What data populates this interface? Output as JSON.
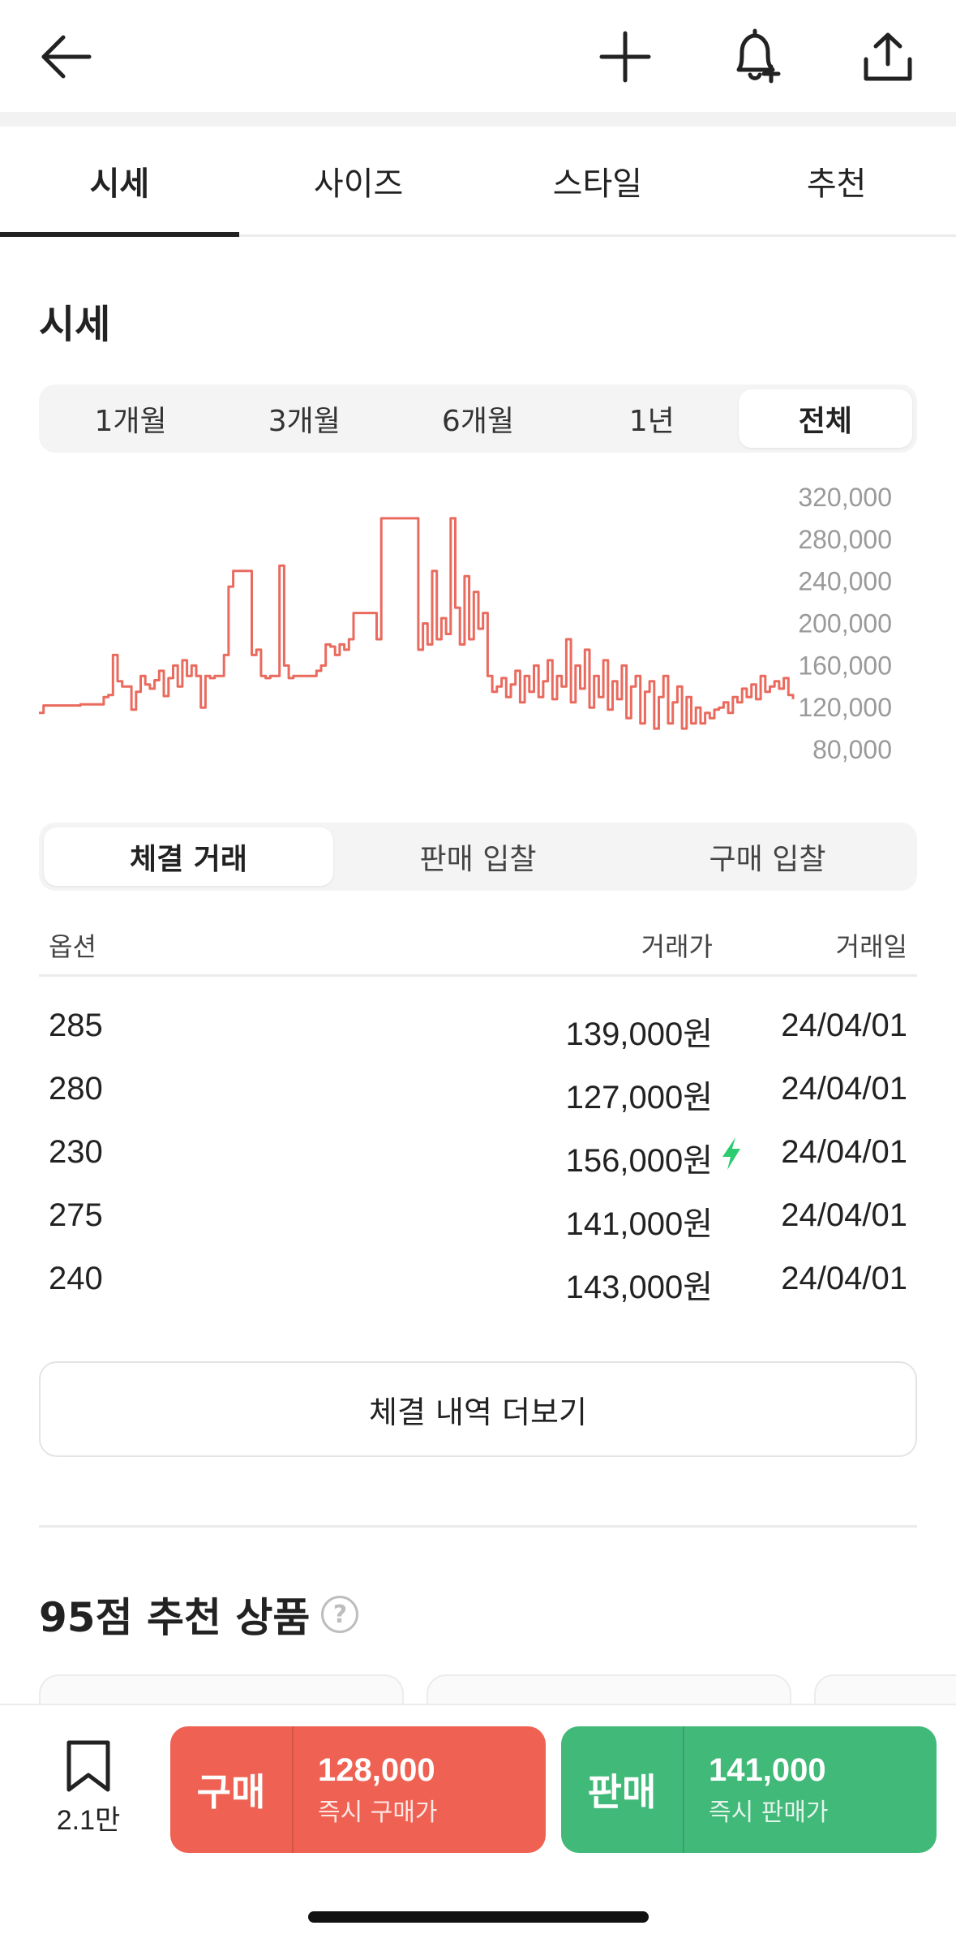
{
  "tabs": [
    {
      "label": "시세",
      "active": true
    },
    {
      "label": "사이즈",
      "active": false
    },
    {
      "label": "스타일",
      "active": false
    },
    {
      "label": "추천",
      "active": false
    }
  ],
  "section_title": "시세",
  "periods": [
    {
      "label": "1개월",
      "active": false
    },
    {
      "label": "3개월",
      "active": false
    },
    {
      "label": "6개월",
      "active": false
    },
    {
      "label": "1년",
      "active": false
    },
    {
      "label": "전체",
      "active": true
    }
  ],
  "chart_data": {
    "type": "line",
    "title": "",
    "xlabel": "",
    "ylabel": "",
    "ylim": [
      60000,
      330000
    ],
    "yticks": [
      "320,000",
      "280,000",
      "240,000",
      "200,000",
      "160,000",
      "120,000",
      "80,000"
    ],
    "yticks_values": [
      320000,
      280000,
      240000,
      200000,
      160000,
      120000,
      80000
    ],
    "color": "#ea6a5e",
    "grid": false,
    "series": [
      {
        "values": [
          115000,
          122000,
          122000,
          122000,
          122000,
          122000,
          122000,
          122000,
          122000,
          123000,
          123000,
          123000,
          123000,
          123000,
          130000,
          132000,
          170000,
          145000,
          140000,
          140000,
          118000,
          135000,
          150000,
          142000,
          138000,
          146000,
          155000,
          131000,
          148000,
          160000,
          140000,
          165000,
          150000,
          160000,
          150000,
          120000,
          150000,
          148000,
          150000,
          150000,
          170000,
          235000,
          250000,
          250000,
          250000,
          250000,
          170000,
          175000,
          150000,
          148000,
          150000,
          150000,
          255000,
          160000,
          148000,
          150000,
          150000,
          150000,
          150000,
          150000,
          155000,
          160000,
          180000,
          178000,
          170000,
          180000,
          175000,
          185000,
          210000,
          210000,
          210000,
          210000,
          210000,
          185000,
          300000,
          300000,
          300000,
          300000,
          300000,
          300000,
          300000,
          300000,
          175000,
          200000,
          180000,
          250000,
          185000,
          205000,
          190000,
          300000,
          215000,
          180000,
          245000,
          185000,
          230000,
          195000,
          210000,
          150000,
          135000,
          140000,
          148000,
          130000,
          142000,
          155000,
          125000,
          150000,
          135000,
          160000,
          130000,
          145000,
          165000,
          128000,
          150000,
          140000,
          185000,
          125000,
          160000,
          138000,
          175000,
          120000,
          150000,
          130000,
          165000,
          118000,
          145000,
          128000,
          160000,
          110000,
          140000,
          150000,
          105000,
          135000,
          145000,
          100000,
          130000,
          150000,
          105000,
          125000,
          140000,
          100000,
          130000,
          105000,
          120000,
          105000,
          115000,
          110000,
          118000,
          120000,
          125000,
          115000,
          130000,
          125000,
          138000,
          130000,
          142000,
          128000,
          150000,
          135000,
          140000,
          145000,
          138000,
          148000,
          132000,
          128000
        ]
      }
    ]
  },
  "trade_types": [
    {
      "label": "체결 거래",
      "active": true
    },
    {
      "label": "판매 입찰",
      "active": false
    },
    {
      "label": "구매 입찰",
      "active": false
    }
  ],
  "table": {
    "headers": {
      "option": "옵션",
      "price": "거래가",
      "date": "거래일"
    },
    "rows": [
      {
        "option": "285",
        "price": "139,000원",
        "date": "24/04/01",
        "flash": false
      },
      {
        "option": "280",
        "price": "127,000원",
        "date": "24/04/01",
        "flash": false
      },
      {
        "option": "230",
        "price": "156,000원",
        "date": "24/04/01",
        "flash": true
      },
      {
        "option": "275",
        "price": "141,000원",
        "date": "24/04/01",
        "flash": false
      },
      {
        "option": "240",
        "price": "143,000원",
        "date": "24/04/01",
        "flash": false
      }
    ]
  },
  "more_button": "체결 내역 더보기",
  "recommend": {
    "title": "95점 추천 상품",
    "help_glyph": "?"
  },
  "bottom": {
    "bookmark_count": "2.1만",
    "buy": {
      "label": "구매",
      "price": "128,000",
      "sub": "즉시 구매가",
      "color": "#ef6253"
    },
    "sell": {
      "label": "판매",
      "price": "141,000",
      "sub": "즉시 판매가",
      "color": "#41b979"
    }
  },
  "icons": {
    "back": "arrow-left-icon",
    "add": "plus-icon",
    "alert": "bell-plus-icon",
    "share": "share-icon",
    "bookmark": "bookmark-icon",
    "flash": "lightning-icon"
  }
}
